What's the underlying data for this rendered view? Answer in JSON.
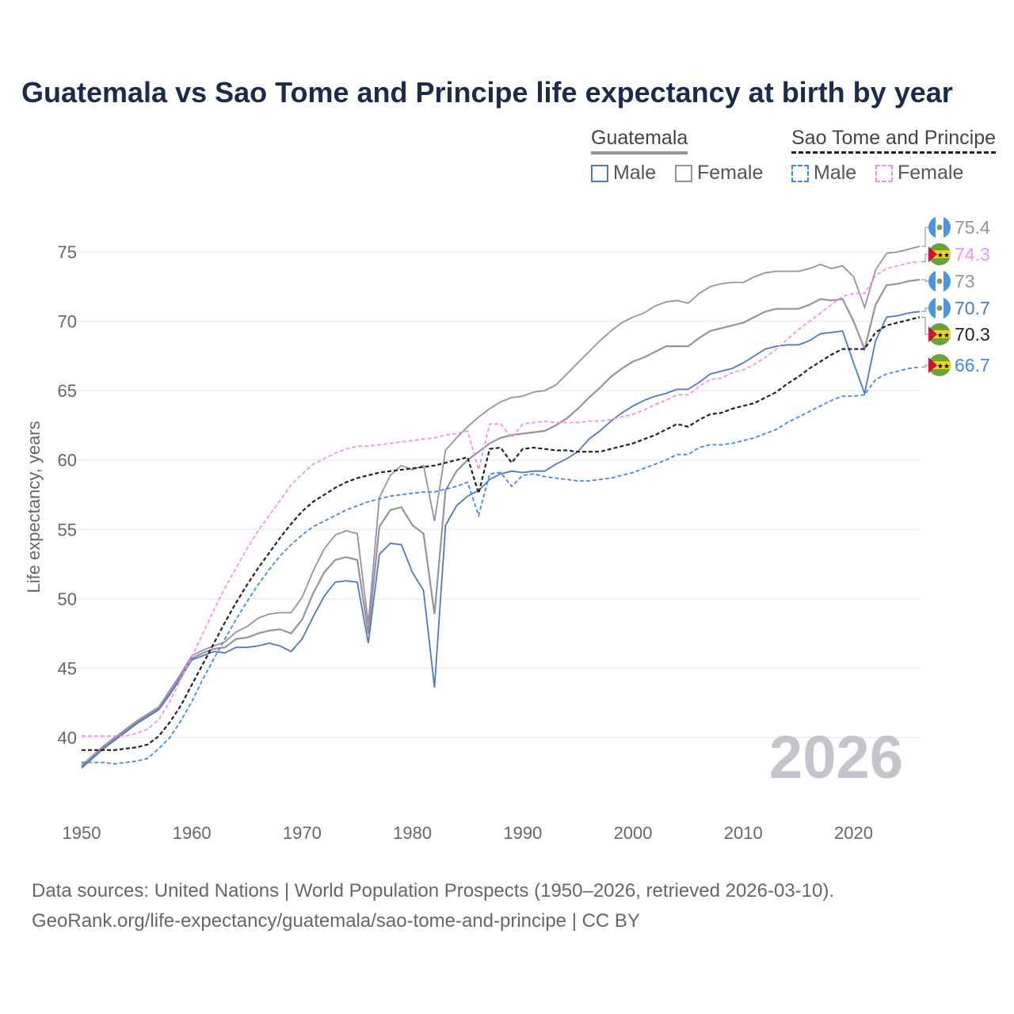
{
  "title": "Guatemala vs Sao Tome and Principe life expectancy at birth by year",
  "legend": {
    "groups": [
      {
        "name": "Guatemala",
        "items": [
          "Male",
          "Female"
        ]
      },
      {
        "name": "Sao Tome and Principe",
        "items": [
          "Male",
          "Female"
        ]
      }
    ]
  },
  "year_watermark": "2026",
  "source_lines": [
    "Data sources: United Nations | World Population Prospects (1950–2026, retrieved 2026-03-10).",
    "GeoRank.org/life-expectancy/guatemala/sao-tome-and-principe | CC BY"
  ],
  "colors": {
    "gt_total": "#9a90a2",
    "gt_male": "#4f78c0",
    "gt_female": "#9a90a2",
    "st_total": "#222222",
    "st_male": "#3b88ee",
    "st_female": "#f590ea"
  },
  "chart_data": {
    "type": "line",
    "title": "Guatemala vs Sao Tome and Principe life expectancy at birth by year",
    "xlabel": "",
    "ylabel": "Life expectancy, years",
    "xlim": [
      1950,
      2026
    ],
    "ylim": [
      36,
      77
    ],
    "xticks": [
      1950,
      1960,
      1970,
      1980,
      1990,
      2000,
      2010,
      2020
    ],
    "yticks": [
      40,
      45,
      50,
      55,
      60,
      65,
      70,
      75
    ],
    "grid": true,
    "x_start": 1950,
    "series": [
      {
        "key": "gt_female",
        "name": "Guatemala Female",
        "style": "solid",
        "end_label": "75.4",
        "values": [
          38.0,
          38.7,
          39.4,
          40.0,
          40.6,
          41.2,
          41.7,
          42.2,
          43.4,
          44.6,
          45.9,
          46.3,
          46.6,
          46.9,
          47.6,
          48.0,
          48.6,
          48.9,
          49.0,
          49.0,
          50.1,
          52.0,
          53.6,
          54.6,
          54.9,
          54.7,
          48.2,
          57.3,
          58.9,
          59.6,
          59.3,
          59.6,
          55.6,
          60.7,
          61.6,
          62.4,
          63.1,
          63.7,
          64.2,
          64.5,
          64.6,
          64.9,
          65.0,
          65.4,
          66.2,
          67.0,
          67.8,
          68.6,
          69.3,
          69.9,
          70.3,
          70.6,
          71.1,
          71.4,
          71.5,
          71.3,
          72.0,
          72.5,
          72.7,
          72.8,
          72.8,
          73.2,
          73.5,
          73.6,
          73.6,
          73.6,
          73.8,
          74.1,
          73.8,
          74.0,
          73.2,
          71.0,
          73.7,
          74.9,
          75.0,
          75.2,
          75.4
        ]
      },
      {
        "key": "gt_total",
        "name": "Guatemala",
        "style": "solid",
        "end_label": "73",
        "values": [
          37.9,
          38.6,
          39.3,
          39.9,
          40.5,
          41.1,
          41.6,
          42.1,
          43.3,
          44.5,
          45.7,
          46.1,
          46.4,
          46.5,
          47.1,
          47.2,
          47.5,
          47.7,
          47.8,
          47.5,
          48.5,
          50.4,
          51.9,
          52.8,
          53.0,
          52.8,
          47.5,
          55.2,
          56.4,
          56.6,
          55.3,
          54.7,
          48.9,
          57.8,
          59.2,
          60.0,
          60.6,
          61.2,
          61.6,
          61.8,
          61.9,
          62.0,
          62.1,
          62.5,
          63.0,
          63.7,
          64.5,
          65.2,
          66.0,
          66.6,
          67.1,
          67.4,
          67.8,
          68.2,
          68.2,
          68.2,
          68.8,
          69.3,
          69.5,
          69.7,
          69.9,
          70.3,
          70.7,
          70.9,
          70.9,
          70.9,
          71.2,
          71.6,
          71.5,
          71.6,
          70.0,
          68.0,
          71.2,
          72.6,
          72.7,
          72.9,
          73.0
        ]
      },
      {
        "key": "gt_male",
        "name": "Guatemala Male",
        "style": "solid",
        "end_label": "70.7",
        "values": [
          37.8,
          38.5,
          39.2,
          39.8,
          40.4,
          41.0,
          41.5,
          42.0,
          43.1,
          44.3,
          45.6,
          45.9,
          46.2,
          46.1,
          46.5,
          46.5,
          46.6,
          46.8,
          46.6,
          46.2,
          47.1,
          48.7,
          50.2,
          51.2,
          51.3,
          51.2,
          46.8,
          53.2,
          54.0,
          53.9,
          51.9,
          50.6,
          43.6,
          55.3,
          56.7,
          57.4,
          57.8,
          58.6,
          59.0,
          59.2,
          59.1,
          59.2,
          59.2,
          59.7,
          60.1,
          60.6,
          61.5,
          62.1,
          62.8,
          63.4,
          63.9,
          64.3,
          64.6,
          64.8,
          65.1,
          65.1,
          65.6,
          66.2,
          66.4,
          66.6,
          67.0,
          67.5,
          68.0,
          68.2,
          68.3,
          68.3,
          68.6,
          69.1,
          69.2,
          69.3,
          67.0,
          64.8,
          68.6,
          70.3,
          70.4,
          70.6,
          70.7
        ]
      },
      {
        "key": "st_female",
        "name": "Sao Tome and Principe Female",
        "style": "dashed",
        "end_label": "74.3",
        "values": [
          40.1,
          40.1,
          40.1,
          40.1,
          40.1,
          40.3,
          40.6,
          41.3,
          42.6,
          44.2,
          45.8,
          47.5,
          49.2,
          50.8,
          52.2,
          53.6,
          54.9,
          56.0,
          57.1,
          58.2,
          59.0,
          59.7,
          60.1,
          60.5,
          60.8,
          61.0,
          61.0,
          61.1,
          61.2,
          61.3,
          61.4,
          61.5,
          61.6,
          61.8,
          61.9,
          62.1,
          59.3,
          62.6,
          62.6,
          61.6,
          62.6,
          62.7,
          62.8,
          62.7,
          62.7,
          62.7,
          62.8,
          62.8,
          62.9,
          63.1,
          63.3,
          63.6,
          64.0,
          64.3,
          64.7,
          64.7,
          65.3,
          65.8,
          65.9,
          66.3,
          66.5,
          66.9,
          67.4,
          68.0,
          68.7,
          69.4,
          70.0,
          70.6,
          71.2,
          71.8,
          72.0,
          72.0,
          73.3,
          73.8,
          74.0,
          74.2,
          74.3
        ]
      },
      {
        "key": "st_total",
        "name": "Sao Tome and Principe",
        "style": "dashed",
        "end_label": "70.3",
        "values": [
          39.1,
          39.1,
          39.1,
          39.1,
          39.2,
          39.3,
          39.5,
          40.1,
          41.1,
          42.3,
          43.8,
          45.3,
          46.8,
          48.3,
          49.7,
          51.0,
          52.2,
          53.3,
          54.4,
          55.4,
          56.3,
          57.0,
          57.5,
          58.0,
          58.4,
          58.7,
          58.9,
          59.1,
          59.2,
          59.3,
          59.4,
          59.5,
          59.6,
          59.8,
          60.0,
          60.2,
          57.6,
          60.8,
          60.9,
          59.8,
          60.8,
          60.9,
          60.8,
          60.7,
          60.7,
          60.6,
          60.6,
          60.6,
          60.8,
          61.0,
          61.2,
          61.5,
          61.8,
          62.2,
          62.6,
          62.4,
          62.9,
          63.3,
          63.4,
          63.7,
          63.9,
          64.1,
          64.5,
          64.9,
          65.5,
          66.0,
          66.6,
          67.1,
          67.6,
          68.0,
          68.0,
          68.0,
          69.2,
          69.7,
          69.9,
          70.1,
          70.3
        ]
      },
      {
        "key": "st_male",
        "name": "Sao Tome and Principe Male",
        "style": "dashed",
        "end_label": "66.7",
        "values": [
          38.2,
          38.2,
          38.2,
          38.1,
          38.2,
          38.3,
          38.5,
          39.2,
          40.0,
          41.2,
          42.6,
          44.2,
          45.7,
          47.1,
          48.5,
          49.8,
          51.0,
          52.1,
          53.1,
          53.9,
          54.6,
          55.2,
          55.6,
          56.0,
          56.4,
          56.7,
          57.0,
          57.2,
          57.4,
          57.5,
          57.6,
          57.7,
          57.7,
          57.9,
          58.1,
          58.4,
          56.0,
          59.0,
          59.1,
          58.1,
          58.9,
          59.0,
          58.8,
          58.7,
          58.6,
          58.5,
          58.5,
          58.6,
          58.7,
          58.9,
          59.1,
          59.4,
          59.7,
          60.0,
          60.4,
          60.4,
          60.9,
          61.1,
          61.1,
          61.2,
          61.4,
          61.6,
          61.9,
          62.2,
          62.7,
          63.1,
          63.5,
          63.9,
          64.3,
          64.6,
          64.6,
          64.7,
          65.8,
          66.2,
          66.4,
          66.6,
          66.7
        ]
      }
    ]
  }
}
